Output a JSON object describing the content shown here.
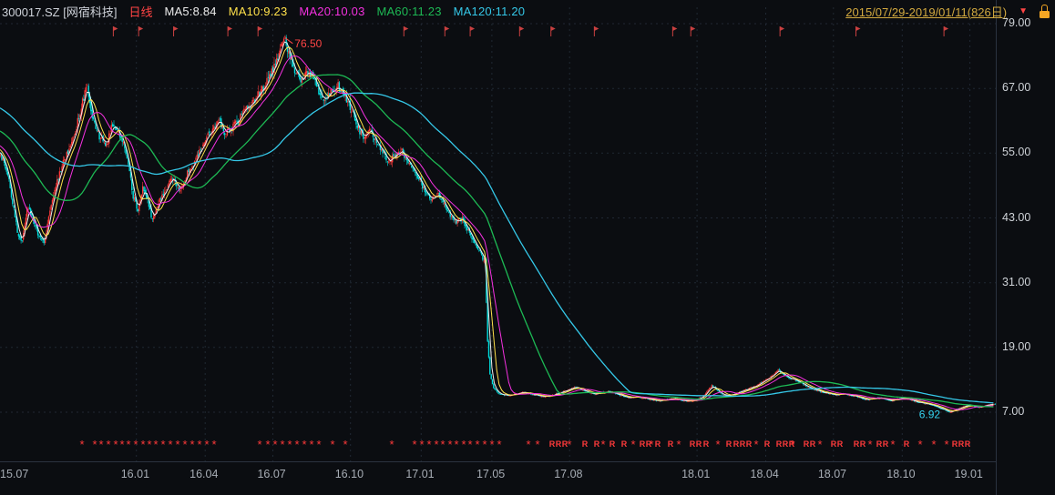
{
  "header": {
    "symbol": "300017.SZ [网宿科技]",
    "period": "日线",
    "ma_labels": [
      {
        "text": "MA5:8.84",
        "color": "#ececec"
      },
      {
        "text": "MA10:9.23",
        "color": "#ffe14b"
      },
      {
        "text": "MA20:10.03",
        "color": "#f531e0"
      },
      {
        "text": "MA60:11.23",
        "color": "#1db954"
      },
      {
        "text": "MA120:11.20",
        "color": "#35c8e8"
      }
    ],
    "date_range": "2015/07/29-2019/01/11(826日)",
    "collapse_icon": "▼"
  },
  "chart_data": {
    "type": "candlestick",
    "symbol": "300017.SZ",
    "name": "网宿科技",
    "period": "日线",
    "date_range_start": "2015/07/29",
    "date_range_end": "2019/01/11",
    "total_days": 826,
    "ylim": [
      7,
      79
    ],
    "peak_price": 76.5,
    "low_price": 6.92,
    "y_ticks": [
      79,
      67,
      55,
      43,
      31,
      19,
      7
    ],
    "y_tick_labels": [
      "79.00",
      "67.00",
      "55.00",
      "43.00",
      "31.00",
      "19.00",
      "7.00"
    ],
    "x_ticks": [
      {
        "label": "15.07",
        "f": 0.007
      },
      {
        "label": "16.01",
        "f": 0.137
      },
      {
        "label": "16.04",
        "f": 0.206
      },
      {
        "label": "16.07",
        "f": 0.274
      },
      {
        "label": "16.10",
        "f": 0.352
      },
      {
        "label": "17.01",
        "f": 0.423
      },
      {
        "label": "17.05",
        "f": 0.494
      },
      {
        "label": "17.08",
        "f": 0.572
      },
      {
        "label": "18.01",
        "f": 0.7
      },
      {
        "label": "18.04",
        "f": 0.769
      },
      {
        "label": "18.07",
        "f": 0.837
      },
      {
        "label": "18.10",
        "f": 0.906
      },
      {
        "label": "19.01",
        "f": 0.974
      }
    ],
    "ma_series": [
      {
        "name": "MA5",
        "window": 5,
        "color": "#ececec",
        "value": "8.84"
      },
      {
        "name": "MA10",
        "window": 10,
        "color": "#ffe14b",
        "value": "9.23"
      },
      {
        "name": "MA20",
        "window": 20,
        "color": "#f531e0",
        "value": "10.03"
      },
      {
        "name": "MA60",
        "window": 60,
        "color": "#1db954",
        "value": "11.23"
      },
      {
        "name": "MA120",
        "window": 120,
        "color": "#35c8e8",
        "value": "11.20"
      }
    ],
    "annotations": [
      {
        "text": "76.50",
        "color": "#ff4545",
        "day": 236,
        "price": 76.5,
        "arrow": true
      },
      {
        "text": "6.92",
        "color": "#35d3f0",
        "day": 788,
        "price": 6.92,
        "arrow": false
      }
    ],
    "close_keyframes": [
      [
        0,
        55.0
      ],
      [
        6,
        51.0
      ],
      [
        10,
        46.0
      ],
      [
        14,
        40.5
      ],
      [
        18,
        38.5
      ],
      [
        22,
        45.0
      ],
      [
        27,
        43.0
      ],
      [
        31,
        40.0
      ],
      [
        36,
        38.2
      ],
      [
        40,
        43.0
      ],
      [
        46,
        49.0
      ],
      [
        52,
        53.5
      ],
      [
        58,
        56.0
      ],
      [
        63,
        60.0
      ],
      [
        68,
        64.5
      ],
      [
        72,
        67.5
      ],
      [
        76,
        62.0
      ],
      [
        82,
        58.0
      ],
      [
        88,
        56.5
      ],
      [
        93,
        60.5
      ],
      [
        98,
        59.0
      ],
      [
        103,
        56.0
      ],
      [
        107,
        52.0
      ],
      [
        110,
        47.0
      ],
      [
        114,
        44.5
      ],
      [
        118,
        49.0
      ],
      [
        122,
        46.5
      ],
      [
        126,
        42.5
      ],
      [
        131,
        46.0
      ],
      [
        137,
        48.5
      ],
      [
        143,
        50.5
      ],
      [
        149,
        48.0
      ],
      [
        155,
        51.5
      ],
      [
        160,
        53.0
      ],
      [
        165,
        55.5
      ],
      [
        170,
        57.5
      ],
      [
        176,
        59.5
      ],
      [
        181,
        61.5
      ],
      [
        186,
        58.5
      ],
      [
        191,
        59.5
      ],
      [
        197,
        61.0
      ],
      [
        203,
        63.0
      ],
      [
        209,
        64.5
      ],
      [
        215,
        66.0
      ],
      [
        221,
        68.5
      ],
      [
        227,
        71.0
      ],
      [
        232,
        74.0
      ],
      [
        236,
        76.0
      ],
      [
        240,
        73.0
      ],
      [
        244,
        70.5
      ],
      [
        249,
        68.5
      ],
      [
        254,
        70.5
      ],
      [
        259,
        69.0
      ],
      [
        264,
        66.5
      ],
      [
        269,
        65.0
      ],
      [
        274,
        66.5
      ],
      [
        280,
        67.5
      ],
      [
        287,
        65.0
      ],
      [
        292,
        62.5
      ],
      [
        297,
        59.5
      ],
      [
        302,
        57.5
      ],
      [
        307,
        59.5
      ],
      [
        312,
        57.0
      ],
      [
        317,
        55.0
      ],
      [
        322,
        53.5
      ],
      [
        327,
        54.5
      ],
      [
        333,
        55.5
      ],
      [
        338,
        53.0
      ],
      [
        343,
        51.5
      ],
      [
        348,
        50.0
      ],
      [
        353,
        47.5
      ],
      [
        358,
        46.0
      ],
      [
        363,
        47.5
      ],
      [
        368,
        45.5
      ],
      [
        373,
        43.5
      ],
      [
        378,
        42.0
      ],
      [
        383,
        43.0
      ],
      [
        388,
        40.5
      ],
      [
        393,
        38.5
      ],
      [
        397,
        37.0
      ],
      [
        400,
        35.5
      ],
      [
        402,
        35.0
      ],
      [
        404,
        20.0
      ],
      [
        406,
        14.0
      ],
      [
        409,
        11.5
      ],
      [
        413,
        10.5
      ],
      [
        418,
        10.2
      ],
      [
        423,
        10.1
      ],
      [
        428,
        10.4
      ],
      [
        434,
        10.7
      ],
      [
        440,
        10.4
      ],
      [
        446,
        10.1
      ],
      [
        452,
        9.9
      ],
      [
        458,
        10.2
      ],
      [
        464,
        10.6
      ],
      [
        470,
        11.1
      ],
      [
        476,
        11.7
      ],
      [
        481,
        11.3
      ],
      [
        486,
        10.8
      ],
      [
        492,
        10.4
      ],
      [
        498,
        10.6
      ],
      [
        504,
        10.9
      ],
      [
        510,
        10.5
      ],
      [
        516,
        10.0
      ],
      [
        522,
        9.7
      ],
      [
        528,
        9.9
      ],
      [
        534,
        9.6
      ],
      [
        540,
        9.3
      ],
      [
        546,
        9.1
      ],
      [
        552,
        9.3
      ],
      [
        558,
        9.6
      ],
      [
        564,
        9.3
      ],
      [
        570,
        9.0
      ],
      [
        576,
        9.2
      ],
      [
        582,
        9.8
      ],
      [
        586,
        10.8
      ],
      [
        590,
        11.9
      ],
      [
        594,
        11.2
      ],
      [
        598,
        10.4
      ],
      [
        603,
        10.0
      ],
      [
        608,
        10.3
      ],
      [
        613,
        10.8
      ],
      [
        620,
        11.3
      ],
      [
        627,
        12.0
      ],
      [
        634,
        12.8
      ],
      [
        640,
        13.8
      ],
      [
        645,
        14.8
      ],
      [
        649,
        14.1
      ],
      [
        654,
        13.4
      ],
      [
        659,
        13.0
      ],
      [
        664,
        12.4
      ],
      [
        669,
        11.8
      ],
      [
        675,
        11.2
      ],
      [
        681,
        10.8
      ],
      [
        687,
        10.4
      ],
      [
        693,
        10.2
      ],
      [
        700,
        10.4
      ],
      [
        708,
        10.0
      ],
      [
        714,
        9.6
      ],
      [
        720,
        9.3
      ],
      [
        726,
        9.7
      ],
      [
        732,
        9.5
      ],
      [
        738,
        9.1
      ],
      [
        744,
        9.4
      ],
      [
        750,
        9.6
      ],
      [
        756,
        9.2
      ],
      [
        762,
        8.8
      ],
      [
        768,
        8.6
      ],
      [
        774,
        8.2
      ],
      [
        779,
        7.8
      ],
      [
        784,
        7.3
      ],
      [
        788,
        7.0
      ],
      [
        793,
        7.6
      ],
      [
        798,
        8.0
      ],
      [
        803,
        8.3
      ],
      [
        808,
        8.1
      ],
      [
        813,
        7.9
      ],
      [
        818,
        8.3
      ],
      [
        825,
        8.5
      ]
    ],
    "event_markers": {
      "asterisk_f": [
        0.082,
        0.095,
        0.102,
        0.109,
        0.116,
        0.123,
        0.129,
        0.136,
        0.144,
        0.15,
        0.156,
        0.164,
        0.171,
        0.178,
        0.186,
        0.193,
        0.2,
        0.208,
        0.215,
        0.261,
        0.269,
        0.276,
        0.284,
        0.291,
        0.298,
        0.306,
        0.313,
        0.32,
        0.334,
        0.347,
        0.393,
        0.416,
        0.424,
        0.431,
        0.438,
        0.445,
        0.452,
        0.458,
        0.466,
        0.472,
        0.479,
        0.487,
        0.494,
        0.501,
        0.531,
        0.54,
        0.572,
        0.606,
        0.636,
        0.654,
        0.682,
        0.721,
        0.759,
        0.796,
        0.823,
        0.874,
        0.897,
        0.924,
        0.938,
        0.951
      ],
      "r_f": [
        0.554,
        0.561,
        0.567,
        0.587,
        0.599,
        0.615,
        0.627,
        0.645,
        0.651,
        0.661,
        0.673,
        0.695,
        0.702,
        0.709,
        0.732,
        0.739,
        0.746,
        0.752,
        0.77,
        0.782,
        0.789,
        0.795,
        0.81,
        0.816,
        0.837,
        0.844,
        0.86,
        0.866,
        0.883,
        0.889,
        0.91,
        0.959,
        0.965,
        0.972
      ]
    },
    "flag_days": [
      94,
      115,
      144,
      189,
      214,
      335,
      369,
      390,
      431,
      457,
      493,
      558,
      573,
      647,
      710,
      783
    ],
    "colors": {
      "up": "#ff3a3a",
      "down": "#00dede",
      "background": "#0b0d11",
      "grid": "#202833",
      "border": "#2b3340",
      "marker": "#ff3a3a",
      "flag": "#c94040",
      "axis_text": "#cfd3d8"
    }
  }
}
